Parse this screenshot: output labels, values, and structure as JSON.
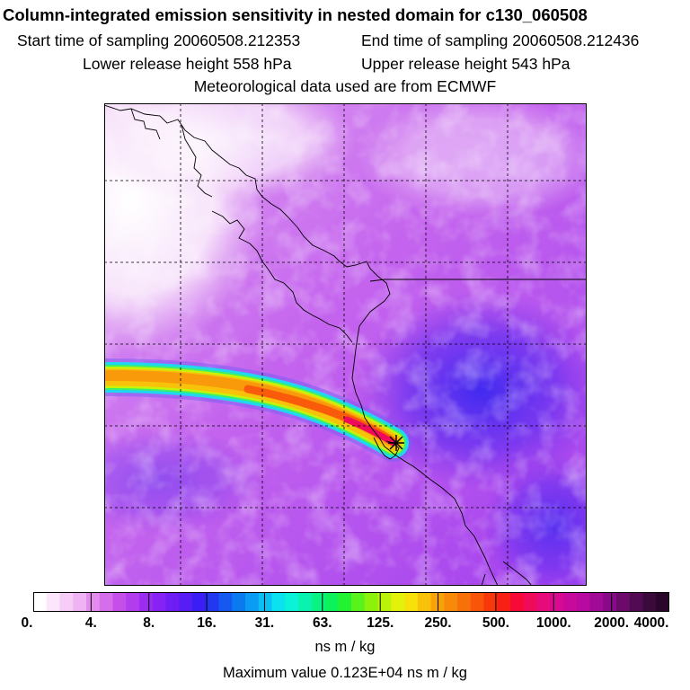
{
  "header": {
    "title": "Column-integrated emission sensitivity in nested domain for c130_060508",
    "start_label": "Start time of sampling 20060508.212353",
    "end_label": "End time of sampling 20060508.212436",
    "lower_label": "Lower release height  558 hPa",
    "upper_label": "Upper release height  543 hPa",
    "met_label": "Meteorological data used are from ECMWF"
  },
  "colorbar": {
    "tick_labels": [
      "0.",
      "4.",
      "8.",
      "16.",
      "31.",
      "63.",
      "125.",
      "250.",
      "500.",
      "1000.",
      "2000.",
      "4000."
    ],
    "colors": [
      "#ffffff",
      "#fbe6fb",
      "#f6cdf6",
      "#efb3f3",
      "#e48cee",
      "#d66deb",
      "#c64fea",
      "#b13ded",
      "#9b2cf0",
      "#8622f3",
      "#6e1ef4",
      "#561ef4",
      "#3a1ef4",
      "#2437f0",
      "#1559f0",
      "#0a7af0",
      "#0a9cf2",
      "#0bbff2",
      "#0ae2f0",
      "#0af2d8",
      "#0af2b0",
      "#0af284",
      "#0cf25a",
      "#22f232",
      "#59f21a",
      "#8cf20c",
      "#baf20a",
      "#e2f20a",
      "#f6e20a",
      "#f8c20a",
      "#f8a20a",
      "#f88a0a",
      "#f8700a",
      "#f8540a",
      "#f8380a",
      "#f81f14",
      "#f80a38",
      "#f00a5a",
      "#e60a7a",
      "#d90a90",
      "#c80a9c",
      "#b80aa0",
      "#a00a96",
      "#880a88",
      "#6c0a6c",
      "#520a52",
      "#3a0a3a",
      "#2a062a"
    ],
    "units": "ns m / kg",
    "max_value_label": "Maximum value  0.123E+04 ns m / kg"
  },
  "map": {
    "release_marker": "release-point-asterisk"
  }
}
